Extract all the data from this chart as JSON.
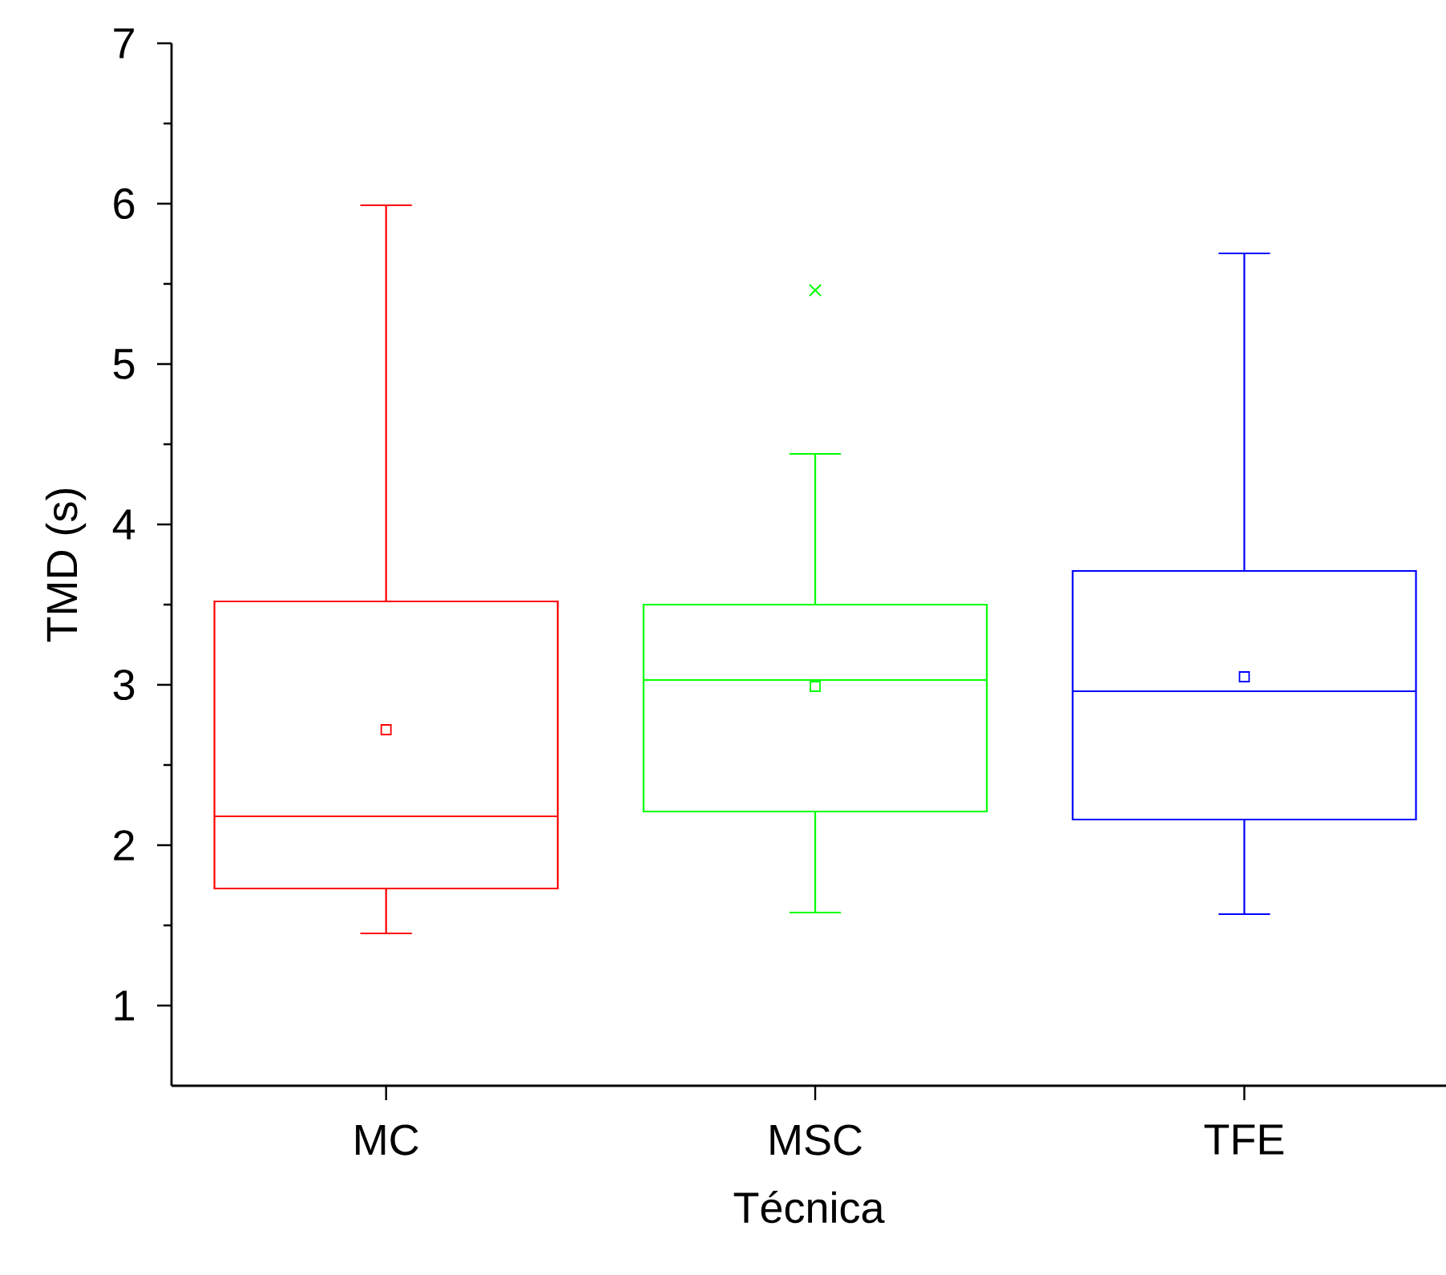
{
  "chart_data": {
    "type": "box",
    "xlabel": "Técnica",
    "ylabel": "TMD (s)",
    "categories": [
      "MC",
      "MSC",
      "TFE"
    ],
    "colors": [
      "#ff0000",
      "#00ff00",
      "#0000ff"
    ],
    "boxes": [
      {
        "low": 1.45,
        "q1": 1.73,
        "median": 2.18,
        "q3": 3.52,
        "high": 5.99,
        "mean": 2.72
      },
      {
        "low": 1.58,
        "q1": 2.21,
        "median": 3.03,
        "q3": 3.5,
        "high": 4.44,
        "mean": 2.99,
        "outliers": [
          5.46
        ]
      },
      {
        "low": 1.57,
        "q1": 2.16,
        "median": 2.96,
        "q3": 3.71,
        "high": 5.69,
        "mean": 3.05
      }
    ],
    "ylim": [
      0.5,
      7
    ],
    "yticks": [
      1,
      2,
      3,
      4,
      5,
      6,
      7
    ],
    "grid": false
  }
}
